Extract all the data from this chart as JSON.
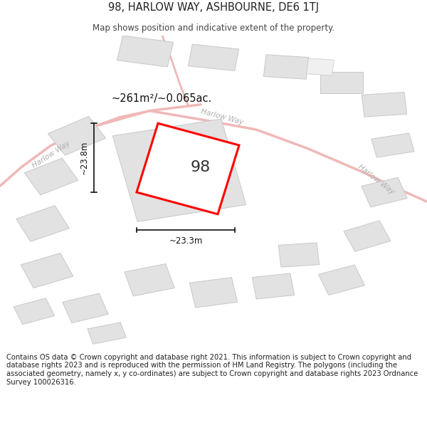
{
  "title": "98, HARLOW WAY, ASHBOURNE, DE6 1TJ",
  "subtitle": "Map shows position and indicative extent of the property.",
  "footer": "Contains OS data © Crown copyright and database right 2021. This information is subject to Crown copyright and database rights 2023 and is reproduced with the permission of HM Land Registry. The polygons (including the associated geometry, namely x, y co-ordinates) are subject to Crown copyright and database rights 2023 Ordnance Survey 100026316.",
  "area_label": "~261m²/~0.065ac.",
  "property_number": "98",
  "dim_width": "~23.3m",
  "dim_height": "~23.8m",
  "background_color": "#ffffff",
  "map_bg_color": "#f9f9f9",
  "road_color": "#f0b8b8",
  "building_color": "#e2e2e2",
  "building_outline": "#c8c8c8",
  "property_fill": "#ffffff",
  "property_outline": "#ff0000",
  "road_label_color": "#b0b0b0",
  "annotation_color": "#111111",
  "title_fontsize": 10.5,
  "subtitle_fontsize": 8.5,
  "footer_fontsize": 7.2
}
